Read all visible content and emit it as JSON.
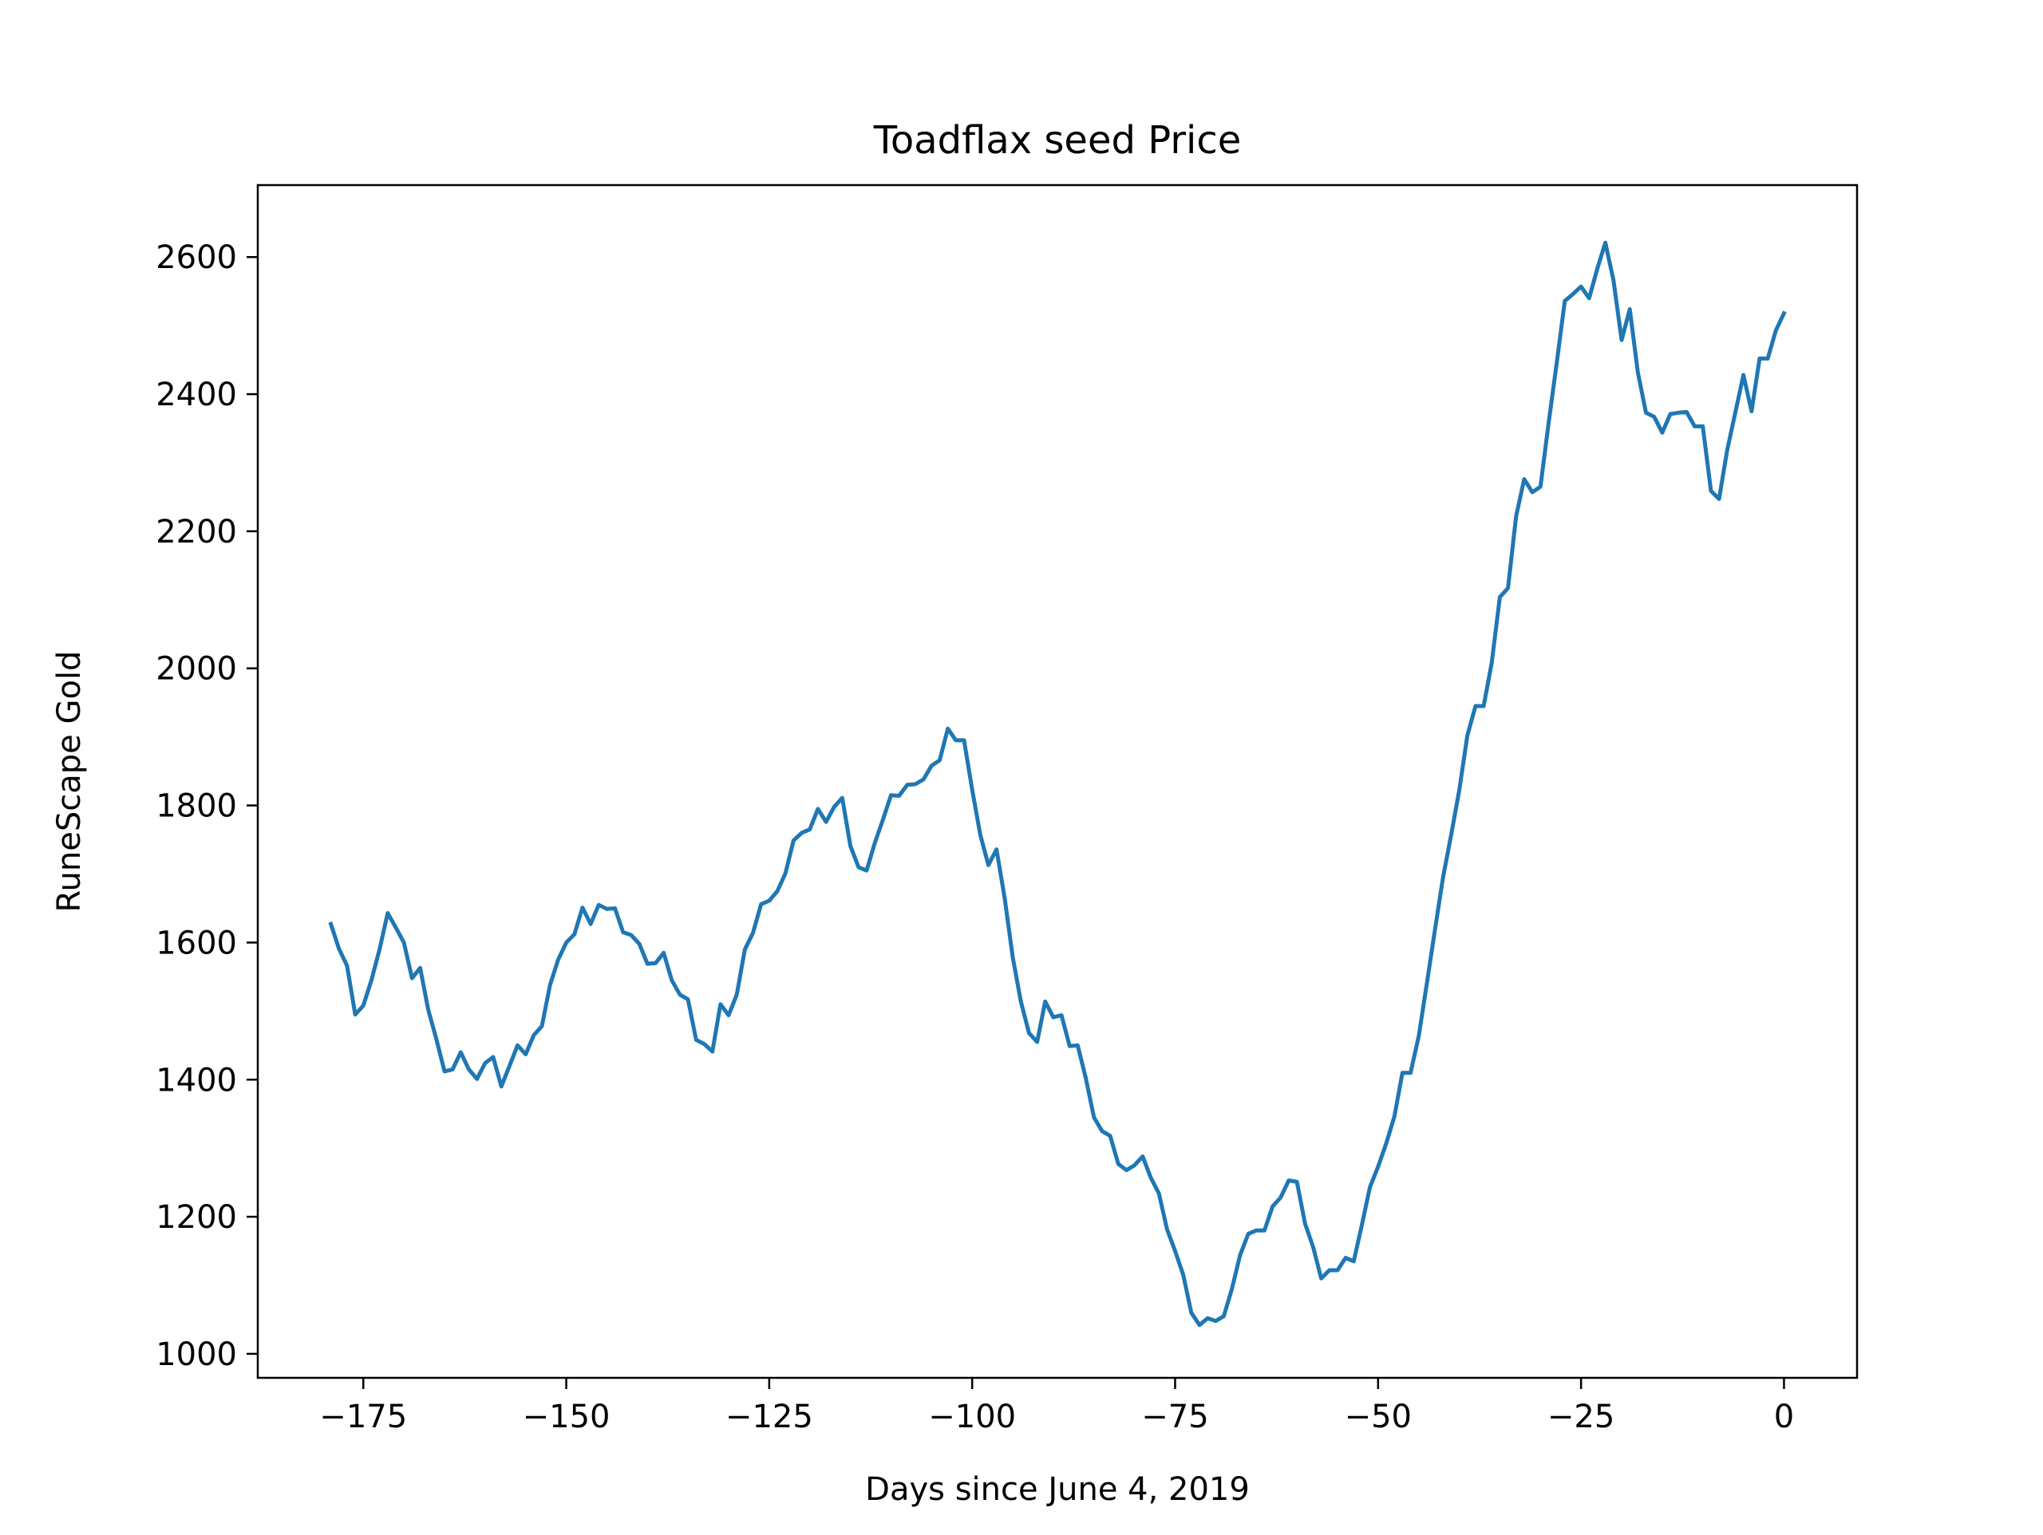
{
  "chart_data": {
    "type": "line",
    "title": "Toadflax seed Price",
    "xlabel": "Days since June 4, 2019",
    "ylabel": "RuneScape Gold",
    "xlim": [
      -188,
      9
    ],
    "ylim": [
      965,
      2705
    ],
    "xticks": [
      -175,
      -150,
      -125,
      -100,
      -75,
      -50,
      -25,
      0
    ],
    "xtick_labels": [
      "−175",
      "−150",
      "−125",
      "−100",
      "−75",
      "−50",
      "−25",
      "0"
    ],
    "yticks": [
      1000,
      1200,
      1400,
      1600,
      1800,
      2000,
      2200,
      2400,
      2600
    ],
    "ytick_labels": [
      "1000",
      "1200",
      "1400",
      "1600",
      "1800",
      "2000",
      "2200",
      "2400",
      "2600"
    ],
    "grid": false,
    "colors": {
      "line": "#1f77b4",
      "axes": "#000000"
    },
    "series": [
      {
        "x": [
          -179,
          -178,
          -177,
          -176,
          -175,
          -174,
          -173,
          -172,
          -171,
          -170,
          -169,
          -168,
          -167,
          -166,
          -165,
          -164,
          -163,
          -162,
          -161,
          -160,
          -159,
          -158,
          -157,
          -156,
          -155,
          -154,
          -153,
          -152,
          -151,
          -150,
          -149,
          -148,
          -147,
          -146,
          -145,
          -144,
          -143,
          -142,
          -141,
          -140,
          -139,
          -138,
          -137,
          -136,
          -135,
          -134,
          -133,
          -132,
          -131,
          -130,
          -129,
          -128,
          -127,
          -126,
          -125,
          -124,
          -123,
          -122,
          -121,
          -120,
          -119,
          -118,
          -117,
          -116,
          -115,
          -114,
          -113,
          -112,
          -111,
          -110,
          -109,
          -108,
          -107,
          -106,
          -105,
          -104,
          -103,
          -102,
          -101,
          -100,
          -99,
          -98,
          -97,
          -96,
          -95,
          -94,
          -93,
          -92,
          -91,
          -90,
          -89,
          -88,
          -87,
          -86,
          -85,
          -84,
          -83,
          -82,
          -81,
          -80,
          -79,
          -78,
          -77,
          -76,
          -75,
          -74,
          -73,
          -72,
          -71,
          -70,
          -69,
          -68,
          -67,
          -66,
          -65,
          -64,
          -63,
          -62,
          -61,
          -60,
          -59,
          -58,
          -57,
          -56,
          -55,
          -54,
          -53,
          -52,
          -51,
          -50,
          -49,
          -48,
          -47,
          -46,
          -45,
          -44,
          -43,
          -42,
          -41,
          -40,
          -39,
          -38,
          -37,
          -36,
          -35,
          -34,
          -33,
          -32,
          -31,
          -30,
          -29,
          -28,
          -27,
          -26,
          -25,
          -24,
          -23,
          -22,
          -21,
          -20,
          -19,
          -18,
          -17,
          -16,
          -15,
          -14,
          -13,
          -12,
          -11,
          -10,
          -9,
          -8,
          -7,
          -6,
          -5,
          -4,
          -3,
          -2,
          -1,
          0
        ],
        "y": [
          1627,
          1591,
          1566,
          1495,
          1508,
          1545,
          1590,
          1643,
          1622,
          1600,
          1548,
          1563,
          1502,
          1459,
          1412,
          1415,
          1440,
          1415,
          1401,
          1424,
          1433,
          1390,
          1420,
          1450,
          1437,
          1465,
          1478,
          1538,
          1575,
          1600,
          1612,
          1651,
          1627,
          1655,
          1649,
          1650,
          1615,
          1611,
          1598,
          1569,
          1570,
          1585,
          1545,
          1524,
          1517,
          1458,
          1452,
          1441,
          1510,
          1494,
          1524,
          1590,
          1614,
          1656,
          1661,
          1675,
          1701,
          1749,
          1760,
          1765,
          1795,
          1776,
          1798,
          1811,
          1741,
          1710,
          1705,
          1745,
          1779,
          1815,
          1814,
          1830,
          1831,
          1838,
          1858,
          1866,
          1912,
          1895,
          1895,
          1823,
          1757,
          1713,
          1736,
          1665,
          1578,
          1514,
          1468,
          1455,
          1514,
          1491,
          1494,
          1449,
          1450,
          1402,
          1345,
          1325,
          1318,
          1277,
          1268,
          1275,
          1288,
          1257,
          1234,
          1182,
          1150,
          1115,
          1060,
          1042,
          1052,
          1048,
          1055,
          1095,
          1144,
          1175,
          1180,
          1180,
          1215,
          1228,
          1253,
          1251,
          1190,
          1156,
          1110,
          1122,
          1122,
          1140,
          1135,
          1188,
          1243,
          1273,
          1307,
          1346,
          1410,
          1410,
          1463,
          1540,
          1618,
          1695,
          1757,
          1822,
          1902,
          1945,
          1945,
          2008,
          2104,
          2117,
          2222,
          2276,
          2257,
          2265,
          2357,
          2445,
          2536,
          2546,
          2557,
          2540,
          2583,
          2621,
          2566,
          2479,
          2524,
          2432,
          2373,
          2367,
          2344,
          2371,
          2373,
          2374,
          2353,
          2353,
          2259,
          2247,
          2318,
          2373,
          2428,
          2375,
          2452,
          2452,
          2493,
          2518
        ]
      }
    ]
  }
}
